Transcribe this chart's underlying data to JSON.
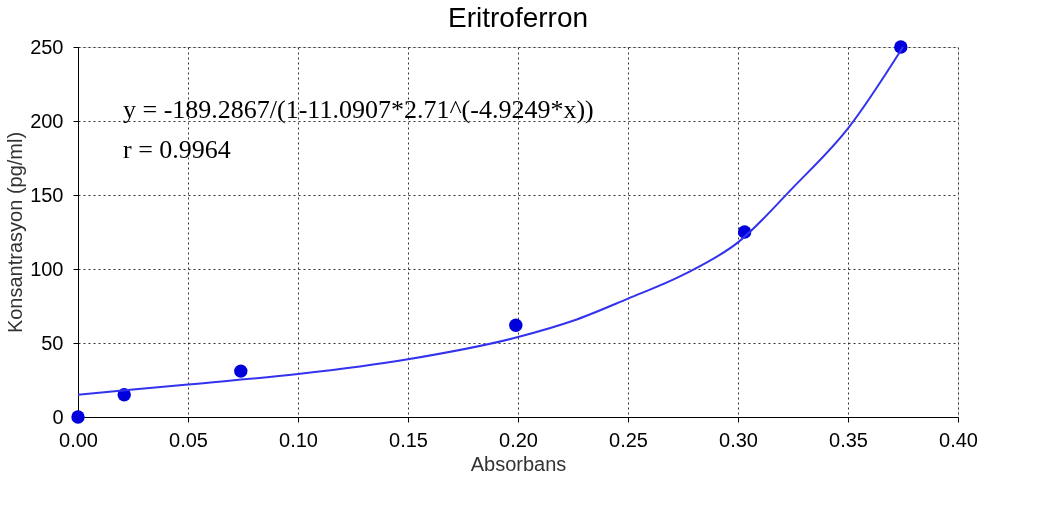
{
  "chart_data": {
    "type": "scatter",
    "title": "Eritroferron",
    "xlabel": "Absorbans",
    "ylabel": "Konsantrasyon (pg/ml)",
    "annotations": [
      "y = -189.2867/(1-11.0907*2.71^(-4.9249*x))",
      "r = 0.9964"
    ],
    "series": [
      {
        "color": "#0000dd",
        "marker": "circle",
        "x": [
          0,
          0.021,
          0.074,
          0.199,
          0.303,
          0.374
        ],
        "values": [
          0,
          15,
          31,
          62,
          125,
          250
        ]
      },
      {
        "type": "line",
        "color": "#3333ee",
        "marker": "none",
        "line_style": "solid",
        "x": [
          0,
          0.05,
          0.1,
          0.15,
          0.2,
          0.225,
          0.25,
          0.275,
          0.3,
          0.325,
          0.35,
          0.375
        ],
        "values": [
          15,
          22,
          29,
          39,
          54,
          65,
          80,
          96,
          118,
          155,
          195,
          250
        ]
      }
    ],
    "xlim": [
      0,
      0.4
    ],
    "ylim": [
      0,
      250
    ],
    "xticks": [
      {
        "value": 0,
        "label": "0.00"
      },
      {
        "value": 0.05,
        "label": "0.05"
      },
      {
        "value": 0.1,
        "label": "0.10"
      },
      {
        "value": 0.15,
        "label": "0.15"
      },
      {
        "value": 0.2,
        "label": "0.20"
      },
      {
        "value": 0.25,
        "label": "0.25"
      },
      {
        "value": 0.3,
        "label": "0.30"
      },
      {
        "value": 0.35,
        "label": "0.35"
      },
      {
        "value": 0.4,
        "label": "0.40"
      }
    ],
    "yticks": [
      0,
      50,
      100,
      150,
      200,
      250
    ],
    "grid": true
  }
}
